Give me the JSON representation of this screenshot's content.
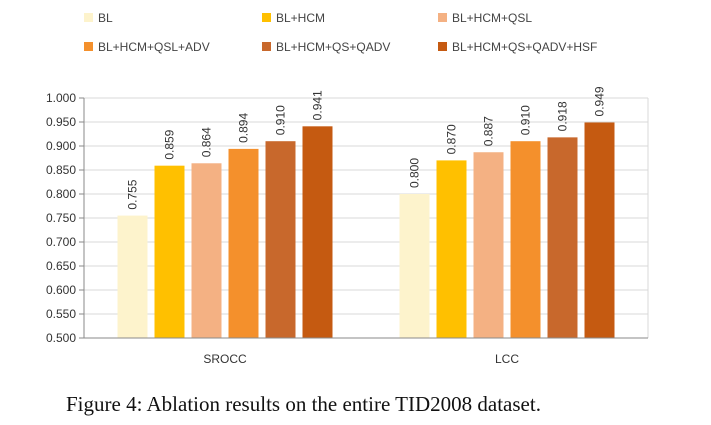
{
  "chart_data": {
    "type": "bar",
    "categories": [
      "SROCC",
      "LCC"
    ],
    "series": [
      {
        "name": "BL",
        "color": "#FDF3CC",
        "values": [
          0.755,
          0.8
        ]
      },
      {
        "name": "BL+HCM",
        "color": "#FFC000",
        "values": [
          0.859,
          0.87
        ]
      },
      {
        "name": "BL+HCM+QSL",
        "color": "#F4B183",
        "values": [
          0.864,
          0.887
        ]
      },
      {
        "name": "BL+HCM+QSL+ADV",
        "color": "#F4902C",
        "values": [
          0.894,
          0.91
        ]
      },
      {
        "name": "BL+HCM+QS+QADV",
        "color": "#C8682C",
        "values": [
          0.91,
          0.918
        ]
      },
      {
        "name": "BL+HCM+QS+QADV+HSF",
        "color": "#C55A11",
        "values": [
          0.941,
          0.949
        ]
      }
    ],
    "ylim": [
      0.5,
      1.0
    ],
    "yticks": [
      "0.500",
      "0.550",
      "0.600",
      "0.650",
      "0.700",
      "0.750",
      "0.800",
      "0.850",
      "0.900",
      "0.950",
      "1.000"
    ],
    "value_labels": [
      [
        "0.755",
        "0.800"
      ],
      [
        "0.859",
        "0.870"
      ],
      [
        "0.864",
        "0.887"
      ],
      [
        "0.894",
        "0.910"
      ],
      [
        "0.910",
        "0.918"
      ],
      [
        "0.941",
        "0.949"
      ]
    ],
    "grid": true,
    "legend_position": "top"
  },
  "caption": "Figure 4: Ablation results on the entire TID2008 dataset."
}
